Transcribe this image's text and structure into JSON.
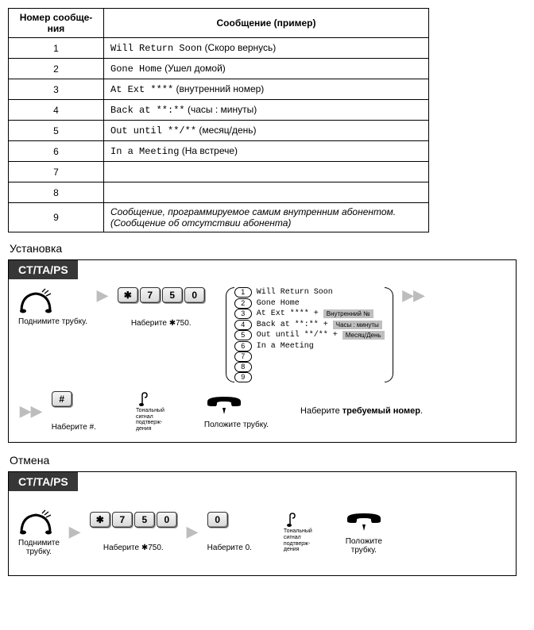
{
  "table": {
    "headers": {
      "num": "Номер сообще-\nния",
      "msg": "Сообщение (пример)"
    },
    "rows": [
      {
        "n": "1",
        "mono": "Will Return Soon",
        "rest": " (Скоро вернусь)"
      },
      {
        "n": "2",
        "mono": "Gone Home",
        "rest": " (Ушел домой)"
      },
      {
        "n": "3",
        "mono": "At Ext ****",
        "rest": " (внутренний номер)"
      },
      {
        "n": "4",
        "mono": "Back at **:**",
        "rest": " (часы : минуты)"
      },
      {
        "n": "5",
        "mono": "Out until **/**",
        "rest": " (месяц/день)"
      },
      {
        "n": "6",
        "mono": "In a Meeting",
        "rest": " (На встрече)"
      },
      {
        "n": "7",
        "mono": "",
        "rest": ""
      },
      {
        "n": "8",
        "mono": "",
        "rest": ""
      }
    ],
    "row9": {
      "n": "9",
      "text": "Сообщение, программируемое самим внутренним абонентом.\n(Сообщение об отсутствии абонента)"
    }
  },
  "setup": {
    "title": "Установка",
    "tab": "CT/TA/PS",
    "offhook": "Поднимите трубку.",
    "dial750": "Наберите ✱750.",
    "dialHash": "Наберите #.",
    "tone": "Тональный\nсигнал\nподтверж-\nдения",
    "onhook": "Положите трубку.",
    "pickNumber": "Наберите требуемый номер.",
    "list": [
      {
        "k": "1",
        "t": "Will Return Soon"
      },
      {
        "k": "2",
        "t": "Gone Home"
      },
      {
        "k": "3",
        "t": "At Ext **** +",
        "hint": "Внутренний №"
      },
      {
        "k": "4",
        "t": "Back at **:** +",
        "hint": "Часы : минуты"
      },
      {
        "k": "5",
        "t": "Out until **/** +",
        "hint": "Месяц/День"
      },
      {
        "k": "6",
        "t": "In a Meeting"
      },
      {
        "k": "7",
        "t": ""
      },
      {
        "k": "8",
        "t": ""
      },
      {
        "k": "9",
        "t": ""
      }
    ],
    "keys": [
      "✱",
      "7",
      "5",
      "0"
    ],
    "hashKey": "#"
  },
  "cancel": {
    "title": "Отмена",
    "tab": "CT/TA/PS",
    "offhook": "Поднимите\nтрубку.",
    "dial750": "Наберите ✱750.",
    "dial0": "Наберите 0.",
    "tone": "Тональный\nсигнал\nподтверж-\nдения",
    "onhook": "Положите\nтрубку.",
    "keys": [
      "✱",
      "7",
      "5",
      "0"
    ],
    "zeroKey": "0"
  }
}
